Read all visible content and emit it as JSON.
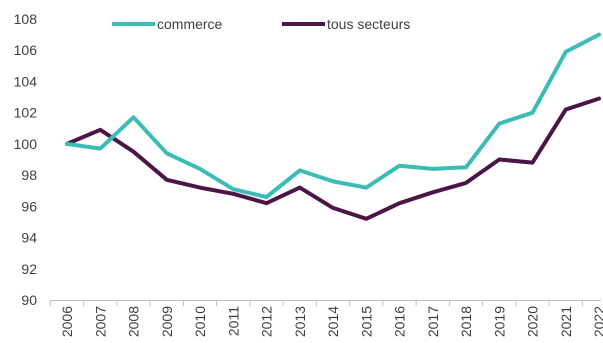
{
  "chart_data": {
    "type": "line",
    "title": "",
    "xlabel": "",
    "ylabel": "",
    "x": [
      "2006",
      "2007",
      "2008",
      "2009",
      "2010",
      "2011",
      "2012",
      "2013",
      "2014",
      "2015",
      "2016",
      "2017",
      "2018",
      "2019",
      "2020",
      "2021",
      "2022"
    ],
    "ylim": [
      90,
      108
    ],
    "yticks": [
      90,
      92,
      94,
      96,
      98,
      100,
      102,
      104,
      106,
      108
    ],
    "grid": false,
    "legend_position": "top",
    "series": [
      {
        "name": "commerce",
        "color": "#3bbcb4",
        "values": [
          100.0,
          99.7,
          101.7,
          99.4,
          98.4,
          97.1,
          96.6,
          98.3,
          97.6,
          97.2,
          98.6,
          98.4,
          98.5,
          101.3,
          102.0,
          105.9,
          107.0
        ]
      },
      {
        "name": "tous secteurs",
        "color": "#4b1548",
        "values": [
          100.0,
          100.9,
          99.5,
          97.7,
          97.2,
          96.8,
          96.2,
          97.2,
          95.9,
          95.2,
          96.2,
          96.9,
          97.5,
          99.0,
          98.8,
          102.2,
          102.9
        ]
      }
    ]
  }
}
